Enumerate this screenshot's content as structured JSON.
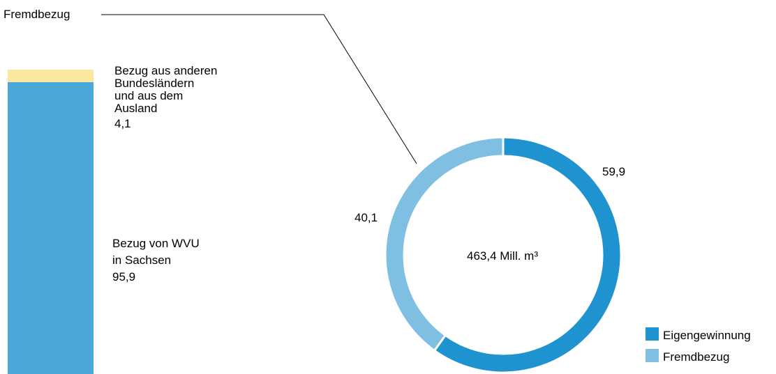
{
  "chart_data": [
    {
      "type": "bar",
      "stacked": true,
      "segments": [
        {
          "label_lines": [
            "Bezug von WVU",
            "in Sachsen"
          ],
          "value": 95.9,
          "value_text": "95,9",
          "color": "#4BA7D8"
        },
        {
          "label_lines": [
            "Bezug aus anderen",
            "Bundesländern",
            "und aus dem",
            "Ausland"
          ],
          "value": 4.1,
          "value_text": "4,1",
          "color": "#FBE8A0"
        }
      ]
    },
    {
      "type": "pie",
      "donut": true,
      "center_label": "463,4 Mill. m³",
      "slices": [
        {
          "name": "Eigengewinnung",
          "value": 59.9,
          "value_text": "59,9",
          "color": "#1F93D0"
        },
        {
          "name": "Fremdbezug",
          "value": 40.1,
          "value_text": "40,1",
          "color": "#7FC0E2"
        }
      ],
      "connector_label": "Fremdbezug",
      "legend": {
        "placement": "bottom-right",
        "items": [
          "Eigengewinnung",
          "Fremdbezug"
        ]
      }
    }
  ]
}
